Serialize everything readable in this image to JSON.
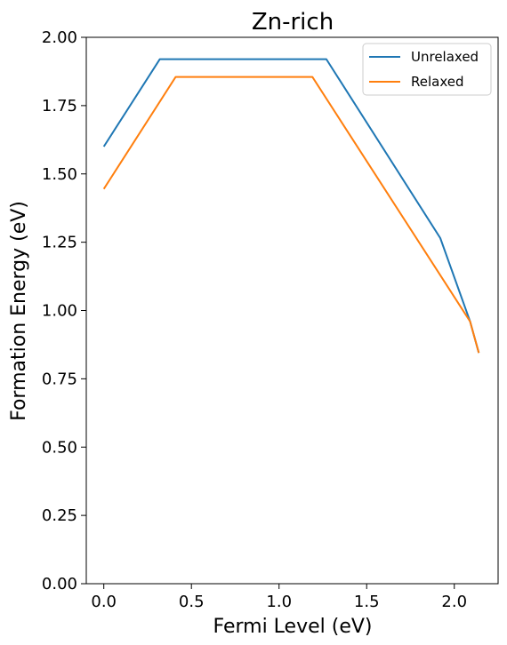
{
  "chart_data": {
    "type": "line",
    "title": "Zn-rich",
    "xlabel": "Fermi Level (eV)",
    "ylabel": "Formation Energy (eV)",
    "xlim": [
      -0.1,
      2.25
    ],
    "ylim": [
      0.0,
      2.0
    ],
    "x_ticks": [
      0.0,
      0.5,
      1.0,
      1.5,
      2.0
    ],
    "x_tick_labels": [
      "0.0",
      "0.5",
      "1.0",
      "1.5",
      "2.0"
    ],
    "y_ticks": [
      0.0,
      0.25,
      0.5,
      0.75,
      1.0,
      1.25,
      1.5,
      1.75,
      2.0
    ],
    "y_tick_labels": [
      "0.00",
      "0.25",
      "0.50",
      "0.75",
      "1.00",
      "1.25",
      "1.50",
      "1.75",
      "2.00"
    ],
    "grid": false,
    "legend_position": "top-right",
    "series": [
      {
        "name": "Unrelaxed",
        "color": "#1f77b4",
        "points": [
          [
            0.0,
            1.6
          ],
          [
            0.32,
            1.92
          ],
          [
            1.27,
            1.92
          ],
          [
            1.92,
            1.265
          ],
          [
            2.09,
            0.96
          ],
          [
            2.14,
            0.845
          ]
        ]
      },
      {
        "name": "Relaxed",
        "color": "#ff7f0e",
        "points": [
          [
            0.0,
            1.445
          ],
          [
            0.41,
            1.855
          ],
          [
            1.19,
            1.855
          ],
          [
            2.09,
            0.96
          ],
          [
            2.14,
            0.845
          ]
        ]
      }
    ]
  }
}
